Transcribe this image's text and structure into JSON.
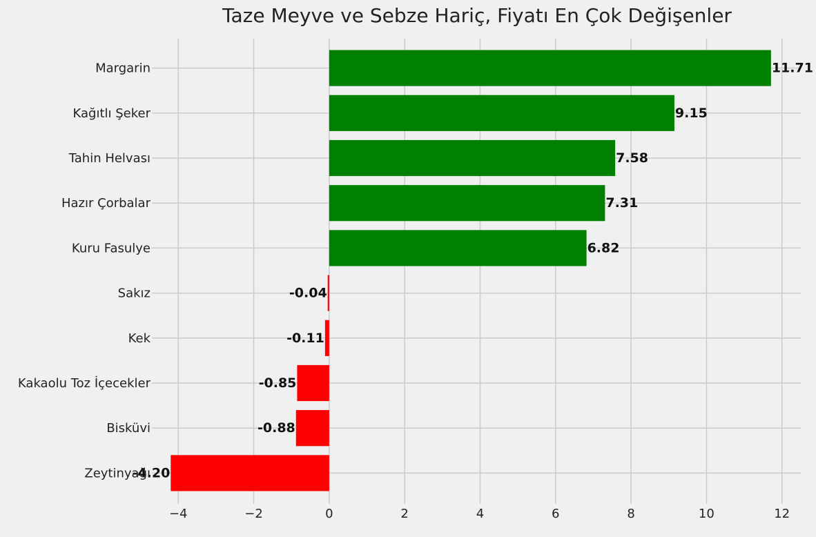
{
  "chart_data": {
    "type": "bar",
    "orientation": "horizontal",
    "title": "Taze Meyve ve Sebze Hariç, Fiyatı En Çok Değişenler",
    "xlabel": "",
    "ylabel": "",
    "categories": [
      "Margarin",
      "Kağıtlı Şeker",
      "Tahin Helvası",
      "Hazır Çorbalar",
      "Kuru Fasulye",
      "Sakız",
      "Kek",
      "Kakaolu Toz İçecekler",
      "Bisküvi",
      "Zeytinyağı"
    ],
    "values": [
      11.71,
      9.15,
      7.58,
      7.31,
      6.82,
      -0.04,
      -0.11,
      -0.85,
      -0.88,
      -4.2
    ],
    "value_labels": [
      "11.71",
      "9.15",
      "7.58",
      "7.31",
      "6.82",
      "-0.04",
      "-0.11",
      "-0.85",
      "-0.88",
      "-4.20"
    ],
    "xlim": [
      -4.7,
      12.5
    ],
    "xticks": [
      -4,
      -2,
      0,
      2,
      4,
      6,
      8,
      10,
      12
    ],
    "xtick_labels": [
      "−4",
      "−2",
      "0",
      "2",
      "4",
      "6",
      "8",
      "10",
      "12"
    ],
    "grid": true,
    "legend": "none",
    "colors": {
      "positive": "#008000",
      "negative": "#ff0000",
      "background": "#f0f0f0",
      "grid": "#cbcbcb"
    }
  }
}
